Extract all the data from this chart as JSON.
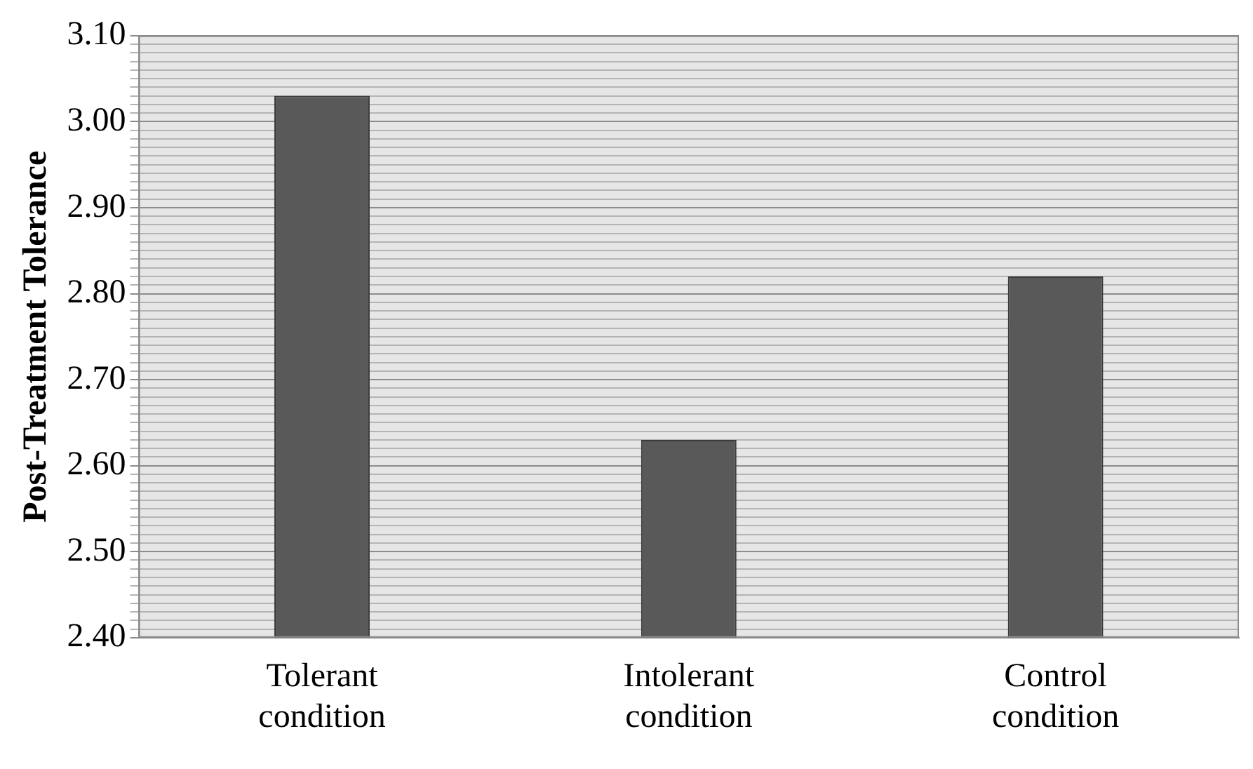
{
  "chart_data": {
    "type": "bar",
    "ylabel": "Post-Treatment Tolerance",
    "categories": [
      "Tolerant condition",
      "Intolerant condition",
      "Control condition"
    ],
    "values": [
      3.03,
      2.63,
      2.82
    ],
    "color": "#595959",
    "ylim": [
      2.4,
      3.1
    ],
    "grid": "y",
    "legend": false,
    "yticks": [
      {
        "value": 2.4,
        "label": "2.40"
      },
      {
        "value": 2.41,
        "label": null
      },
      {
        "value": 2.42,
        "label": null
      },
      {
        "value": 2.43,
        "label": null
      },
      {
        "value": 2.44,
        "label": null
      },
      {
        "value": 2.45,
        "label": null
      },
      {
        "value": 2.46,
        "label": null
      },
      {
        "value": 2.47,
        "label": null
      },
      {
        "value": 2.48,
        "label": null
      },
      {
        "value": 2.49,
        "label": null
      },
      {
        "value": 2.5,
        "label": "2.50"
      },
      {
        "value": 2.51,
        "label": null
      },
      {
        "value": 2.52,
        "label": null
      },
      {
        "value": 2.53,
        "label": null
      },
      {
        "value": 2.54,
        "label": null
      },
      {
        "value": 2.55,
        "label": null
      },
      {
        "value": 2.56,
        "label": null
      },
      {
        "value": 2.57,
        "label": null
      },
      {
        "value": 2.58,
        "label": null
      },
      {
        "value": 2.59,
        "label": null
      },
      {
        "value": 2.6,
        "label": "2.60"
      },
      {
        "value": 2.61,
        "label": null
      },
      {
        "value": 2.62,
        "label": null
      },
      {
        "value": 2.63,
        "label": null
      },
      {
        "value": 2.64,
        "label": null
      },
      {
        "value": 2.65,
        "label": null
      },
      {
        "value": 2.66,
        "label": null
      },
      {
        "value": 2.67,
        "label": null
      },
      {
        "value": 2.68,
        "label": null
      },
      {
        "value": 2.69,
        "label": null
      },
      {
        "value": 2.7,
        "label": "2.70"
      },
      {
        "value": 2.71,
        "label": null
      },
      {
        "value": 2.72,
        "label": null
      },
      {
        "value": 2.73,
        "label": null
      },
      {
        "value": 2.74,
        "label": null
      },
      {
        "value": 2.75,
        "label": null
      },
      {
        "value": 2.76,
        "label": null
      },
      {
        "value": 2.77,
        "label": null
      },
      {
        "value": 2.78,
        "label": null
      },
      {
        "value": 2.79,
        "label": null
      },
      {
        "value": 2.8,
        "label": "2.80"
      },
      {
        "value": 2.81,
        "label": null
      },
      {
        "value": 2.82,
        "label": null
      },
      {
        "value": 2.83,
        "label": null
      },
      {
        "value": 2.84,
        "label": null
      },
      {
        "value": 2.85,
        "label": null
      },
      {
        "value": 2.86,
        "label": null
      },
      {
        "value": 2.87,
        "label": null
      },
      {
        "value": 2.88,
        "label": null
      },
      {
        "value": 2.89,
        "label": null
      },
      {
        "value": 2.9,
        "label": "2.90"
      },
      {
        "value": 2.91,
        "label": null
      },
      {
        "value": 2.92,
        "label": null
      },
      {
        "value": 2.93,
        "label": null
      },
      {
        "value": 2.94,
        "label": null
      },
      {
        "value": 2.95,
        "label": null
      },
      {
        "value": 2.96,
        "label": null
      },
      {
        "value": 2.97,
        "label": null
      },
      {
        "value": 2.98,
        "label": null
      },
      {
        "value": 2.99,
        "label": null
      },
      {
        "value": 3.0,
        "label": "3.00"
      },
      {
        "value": 3.01,
        "label": null
      },
      {
        "value": 3.02,
        "label": null
      },
      {
        "value": 3.03,
        "label": null
      },
      {
        "value": 3.04,
        "label": null
      },
      {
        "value": 3.05,
        "label": null
      },
      {
        "value": 3.06,
        "label": null
      },
      {
        "value": 3.07,
        "label": null
      },
      {
        "value": 3.08,
        "label": null
      },
      {
        "value": 3.09,
        "label": null
      },
      {
        "value": 3.1,
        "label": "3.10"
      }
    ]
  }
}
